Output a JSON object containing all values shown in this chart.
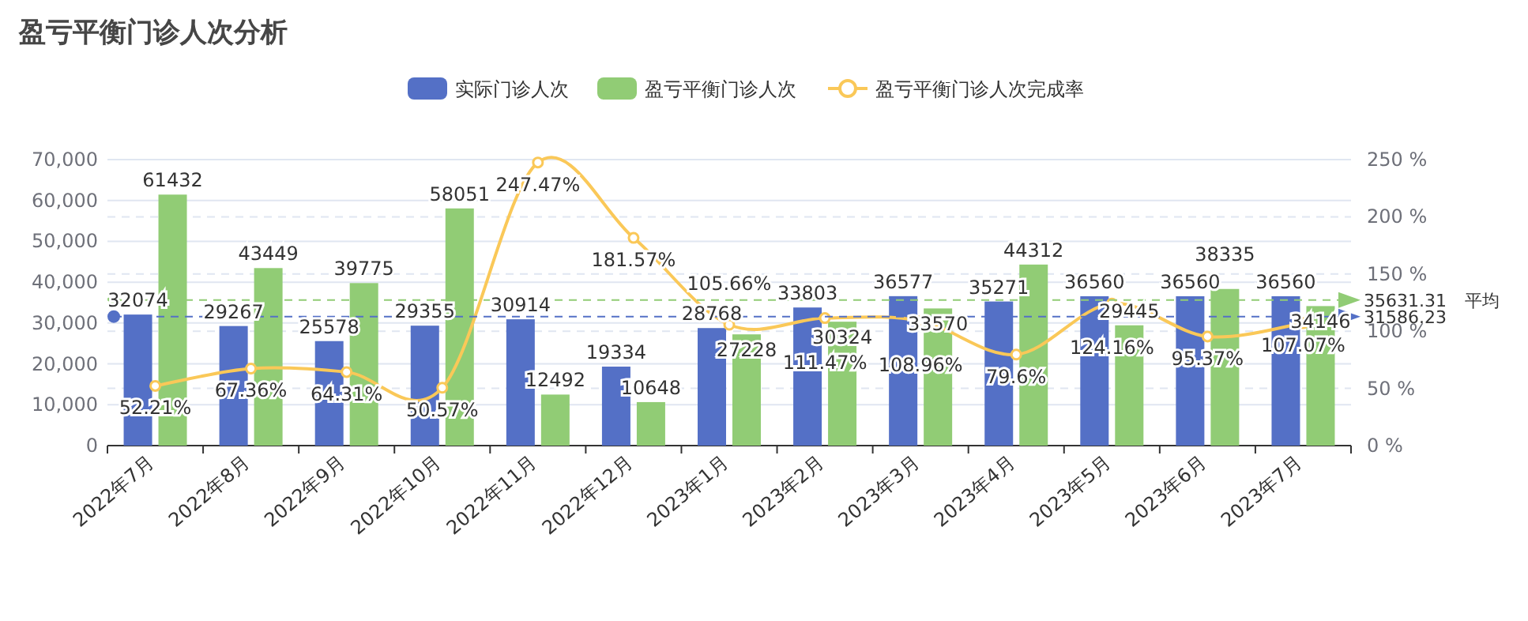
{
  "chart_data": {
    "type": "bar",
    "title": "盈亏平衡门诊人次分析",
    "categories": [
      "2022年7月",
      "2022年8月",
      "2022年9月",
      "2022年10月",
      "2022年11月",
      "2022年12月",
      "2023年1月",
      "2023年2月",
      "2023年3月",
      "2023年4月",
      "2023年5月",
      "2023年6月",
      "2023年7月"
    ],
    "series": [
      {
        "name": "实际门诊人次",
        "color": "#5470c6",
        "values": [
          32074,
          29267,
          25578,
          29355,
          30914,
          19334,
          28768,
          33803,
          36577,
          35271,
          36560,
          36560,
          36560
        ]
      },
      {
        "name": "盈亏平衡门诊人次",
        "color": "#91cc75",
        "values": [
          61432,
          43449,
          39775,
          58051,
          12492,
          10648,
          27228,
          30324,
          33570,
          44312,
          29445,
          38335,
          34146
        ]
      },
      {
        "name": "盈亏平衡门诊人次完成率",
        "type": "line",
        "axis": "y2",
        "color": "#fac858",
        "values": [
          52.21,
          67.36,
          64.31,
          50.57,
          247.47,
          181.57,
          105.66,
          111.47,
          108.96,
          79.6,
          124.16,
          95.37,
          107.07
        ],
        "value_labels": [
          "52.21%",
          "67.36%",
          "64.31%",
          "50.57%",
          "247.47%",
          "181.57%",
          "105.66%",
          "111.47%",
          "108.96%",
          "79.6%",
          "124.16%",
          "95.37%",
          "107.07%"
        ]
      }
    ],
    "ylim": [
      0,
      70000
    ],
    "yticks": [
      {
        "value": 0,
        "label": "0"
      },
      {
        "value": 10000,
        "label": "10,000"
      },
      {
        "value": 20000,
        "label": "20,000"
      },
      {
        "value": 30000,
        "label": "30,000"
      },
      {
        "value": 40000,
        "label": "40,000"
      },
      {
        "value": 50000,
        "label": "50,000"
      },
      {
        "value": 60000,
        "label": "60,000"
      },
      {
        "value": 70000,
        "label": "70,000"
      }
    ],
    "y2lim": [
      0,
      250
    ],
    "y2ticks": [
      {
        "value": 0,
        "label": "0 %"
      },
      {
        "value": 50,
        "label": "50 %"
      },
      {
        "value": 100,
        "label": "100 %"
      },
      {
        "value": 150,
        "label": "150 %"
      },
      {
        "value": 200,
        "label": "200 %"
      },
      {
        "value": 250,
        "label": "250 %"
      }
    ],
    "grid": true,
    "legend": "top",
    "marker": "circle",
    "data_labels": true,
    "ref_lines": [
      {
        "axis": "y",
        "value": 35631.31,
        "label": "35631.31",
        "color": "#91cc75",
        "line_style": "dashed"
      },
      {
        "axis": "y",
        "value": 31586.23,
        "label": "31586.23",
        "color": "#5470c6",
        "line_style": "dashed"
      }
    ],
    "annotations": [
      "平均"
    ]
  }
}
